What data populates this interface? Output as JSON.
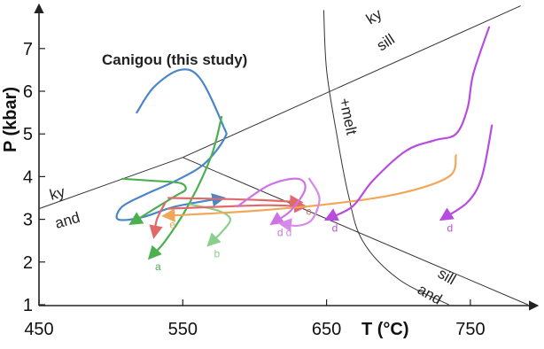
{
  "chart_data": {
    "type": "line",
    "title": "",
    "xlabel": "T (°C)",
    "ylabel": "P (kbar)",
    "xlim": [
      450,
      800
    ],
    "ylim": [
      1,
      7.8
    ],
    "xticks": [
      "450",
      "550",
      "650",
      "750"
    ],
    "yticks": [
      "1",
      "2",
      "3",
      "4",
      "5",
      "6",
      "7"
    ],
    "grid": false,
    "phase_boundaries": [
      {
        "name": "ky-sill",
        "points": [
          [
            550,
            4.45
          ],
          [
            785,
            8.0
          ]
        ]
      },
      {
        "name": "ky-and",
        "points": [
          [
            450,
            3.25
          ],
          [
            550,
            4.45
          ]
        ]
      },
      {
        "name": "sill-and",
        "points": [
          [
            550,
            4.45
          ],
          [
            790,
            1.0
          ]
        ]
      },
      {
        "name": "melt",
        "points": [
          [
            648,
            7.9
          ],
          [
            650,
            6.5
          ],
          [
            657,
            5.0
          ],
          [
            665,
            3.6
          ],
          [
            675,
            2.5
          ],
          [
            700,
            1.6
          ],
          [
            735,
            1.0
          ]
        ]
      }
    ],
    "field_labels": {
      "ky_top": "ky",
      "sill_top": "sill",
      "ky_left": "ky",
      "and_left": "and",
      "sill_right": "sill",
      "and_right": "and",
      "melt": "+melt"
    },
    "annotation": "Canigou (this study)",
    "series": [
      {
        "name": "",
        "label": "",
        "color": "#4a86c8",
        "points": [
          [
            518,
            5.5
          ],
          [
            530,
            6.1
          ],
          [
            548,
            6.5
          ],
          [
            562,
            6.3
          ],
          [
            578,
            5.2
          ],
          [
            579,
            4.9
          ],
          [
            565,
            4.3
          ],
          [
            545,
            3.9
          ],
          [
            525,
            3.6
          ],
          [
            508,
            3.3
          ],
          [
            505,
            3.0
          ],
          [
            522,
            3.05
          ],
          [
            545,
            3.3
          ],
          [
            578,
            3.5
          ]
        ]
      },
      {
        "name": "",
        "label": "a",
        "color": "#4caf50",
        "points": [
          [
            577,
            5.4
          ],
          [
            570,
            4.5
          ],
          [
            555,
            3.4
          ],
          [
            538,
            2.5
          ],
          [
            527,
            2.1
          ]
        ]
      },
      {
        "name": "",
        "label": "",
        "color": "#4caf50",
        "points": [
          [
            508,
            3.95
          ],
          [
            530,
            3.9
          ],
          [
            548,
            3.85
          ],
          [
            552,
            3.7
          ],
          [
            545,
            3.55
          ],
          [
            528,
            3.2
          ],
          [
            514,
            2.9
          ]
        ]
      },
      {
        "name": "",
        "label": "b",
        "color": "#8ccf8c",
        "points": [
          [
            555,
            3.35
          ],
          [
            575,
            3.2
          ],
          [
            583,
            3.0
          ],
          [
            577,
            2.7
          ],
          [
            568,
            2.4
          ]
        ]
      },
      {
        "name": "",
        "label": "c",
        "color": "#e06a6a",
        "points": [
          [
            540,
            3.5
          ],
          [
            575,
            3.48
          ],
          [
            605,
            3.45
          ],
          [
            632,
            3.4
          ]
        ]
      },
      {
        "name": "",
        "label": "",
        "color": "#e06a6a",
        "points": [
          [
            540,
            3.25
          ],
          [
            580,
            3.3
          ],
          [
            610,
            3.33
          ],
          [
            635,
            3.3
          ]
        ]
      },
      {
        "name": "",
        "label": "",
        "color": "#e06a6a",
        "points": [
          [
            538,
            3.4
          ],
          [
            532,
            3.0
          ],
          [
            530,
            2.6
          ]
        ]
      },
      {
        "name": "",
        "label": "e",
        "color": "#f0a858",
        "points": [
          [
            740,
            4.5
          ],
          [
            735,
            4.0
          ],
          [
            700,
            3.6
          ],
          [
            650,
            3.35
          ],
          [
            600,
            3.2
          ],
          [
            560,
            3.12
          ],
          [
            537,
            3.08
          ]
        ]
      },
      {
        "name": "",
        "label": "d",
        "color": "#cf72e6",
        "points": [
          [
            588,
            3.3
          ],
          [
            610,
            3.8
          ],
          [
            630,
            3.95
          ],
          [
            635,
            3.7
          ],
          [
            625,
            3.2
          ],
          [
            612,
            2.9
          ]
        ]
      },
      {
        "name": "",
        "label": "d",
        "color": "#d88ae8",
        "points": [
          [
            638,
            3.95
          ],
          [
            645,
            3.5
          ],
          [
            640,
            3.0
          ],
          [
            630,
            2.85
          ],
          [
            618,
            2.9
          ]
        ]
      },
      {
        "name": "",
        "label": "d",
        "color": "#b84ce0",
        "points": [
          [
            763,
            7.5
          ],
          [
            752,
            6.4
          ],
          [
            748,
            5.6
          ],
          [
            740,
            5.0
          ],
          [
            725,
            4.85
          ],
          [
            705,
            4.6
          ],
          [
            682,
            3.9
          ],
          [
            668,
            3.3
          ],
          [
            650,
            3.0
          ]
        ]
      },
      {
        "name": "",
        "label": "d",
        "color": "#b84ce0",
        "points": [
          [
            765,
            5.2
          ],
          [
            758,
            4.0
          ],
          [
            748,
            3.4
          ],
          [
            730,
            3.0
          ]
        ]
      }
    ]
  }
}
